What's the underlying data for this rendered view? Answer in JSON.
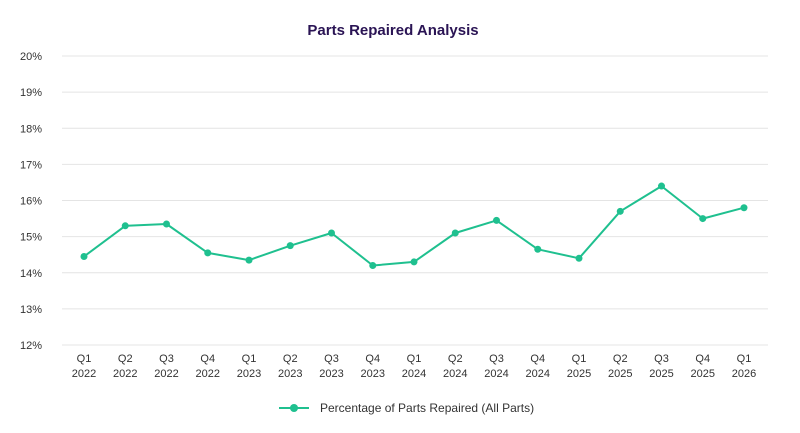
{
  "chart_data": {
    "type": "line",
    "title": "Parts Repaired Analysis",
    "xlabel": "",
    "ylabel": "",
    "categories": [
      [
        "Q1",
        "2022"
      ],
      [
        "Q2",
        "2022"
      ],
      [
        "Q3",
        "2022"
      ],
      [
        "Q4",
        "2022"
      ],
      [
        "Q1",
        "2023"
      ],
      [
        "Q2",
        "2023"
      ],
      [
        "Q3",
        "2023"
      ],
      [
        "Q4",
        "2023"
      ],
      [
        "Q1",
        "2024"
      ],
      [
        "Q2",
        "2024"
      ],
      [
        "Q3",
        "2024"
      ],
      [
        "Q4",
        "2024"
      ],
      [
        "Q1",
        "2025"
      ],
      [
        "Q2",
        "2025"
      ],
      [
        "Q3",
        "2025"
      ],
      [
        "Q4",
        "2025"
      ],
      [
        "Q1",
        "2026"
      ]
    ],
    "series": [
      {
        "name": "Percentage of Parts Repaired (All Parts)",
        "values": [
          14.45,
          15.3,
          15.35,
          14.55,
          14.35,
          14.75,
          15.1,
          14.2,
          14.3,
          15.1,
          15.45,
          14.65,
          14.4,
          15.7,
          16.4,
          15.5,
          15.8
        ]
      }
    ],
    "ylim": [
      12,
      20
    ],
    "yticks": [
      12,
      13,
      14,
      15,
      16,
      17,
      18,
      19,
      20
    ],
    "ytick_suffix": "%",
    "grid": true,
    "legend_position": "bottom-center",
    "colors": {
      "title": "#2a1454",
      "series": "#1fc08f",
      "grid": "#e4e4e4",
      "tick_text": "#333333"
    }
  }
}
